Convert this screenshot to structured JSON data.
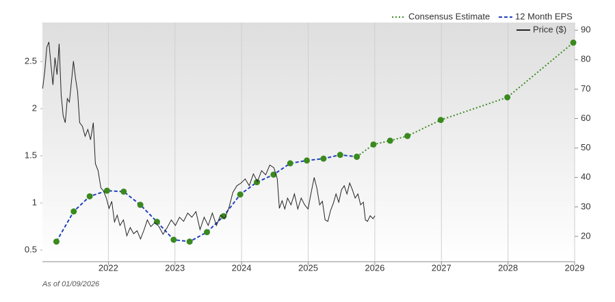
{
  "chart_data": {
    "type": "line",
    "note": "As of 01/09/2026",
    "xlim": [
      2021.01,
      2029.0
    ],
    "xticks": [
      2022,
      2023,
      2024,
      2025,
      2026,
      2027,
      2028,
      2029
    ],
    "ylim": [
      0.377,
      2.913
    ],
    "yticks": [
      0.5,
      1,
      1.5,
      2,
      2.5
    ],
    "y2lim": [
      11.4,
      92.6
    ],
    "y2ticks": [
      20,
      30,
      40,
      50,
      60,
      70,
      80,
      90
    ],
    "grid": true,
    "legend": "top-right",
    "series": [
      {
        "name": "Consensus Estimate",
        "color": "#3a8a1e",
        "style": "dotted",
        "markers": true,
        "marker_color": "#3a8a1e",
        "x": [
          2025.73,
          2025.98,
          2026.23,
          2026.49,
          2026.99,
          2027.99,
          2028.98
        ],
        "values": [
          1.49,
          1.62,
          1.66,
          1.71,
          1.88,
          2.12,
          2.7
        ]
      },
      {
        "name": "12 Month EPS",
        "color": "#1f3fbf",
        "style": "dashed",
        "markers": true,
        "marker_color": "#3a8a1e",
        "x": [
          2021.22,
          2021.48,
          2021.72,
          2021.98,
          2022.23,
          2022.48,
          2022.73,
          2022.98,
          2023.22,
          2023.48,
          2023.73,
          2023.98,
          2024.23,
          2024.48,
          2024.73,
          2024.98,
          2025.23,
          2025.48,
          2025.73
        ],
        "values": [
          0.59,
          0.91,
          1.07,
          1.13,
          1.12,
          0.98,
          0.8,
          0.61,
          0.59,
          0.69,
          0.86,
          1.09,
          1.22,
          1.3,
          1.42,
          1.45,
          1.47,
          1.51,
          1.49
        ]
      },
      {
        "name": "Price ($)",
        "color": "#222222",
        "style": "solid",
        "markers": false,
        "axis": "y2",
        "x": [
          2021.014,
          2021.045,
          2021.076,
          2021.107,
          2021.138,
          2021.168,
          2021.199,
          2021.23,
          2021.261,
          2021.292,
          2021.322,
          2021.353,
          2021.384,
          2021.415,
          2021.446,
          2021.476,
          2021.507,
          2021.538,
          2021.569,
          2021.61,
          2021.651,
          2021.692,
          2021.733,
          2021.774,
          2021.805,
          2021.846,
          2021.887,
          2021.928,
          2021.969,
          2022.01,
          2022.051,
          2022.092,
          2022.133,
          2022.174,
          2022.226,
          2022.277,
          2022.328,
          2022.38,
          2022.431,
          2022.483,
          2022.534,
          2022.585,
          2022.637,
          2022.698,
          2022.76,
          2022.821,
          2022.883,
          2022.945,
          2023.006,
          2023.068,
          2023.13,
          2023.191,
          2023.253,
          2023.315,
          2023.376,
          2023.438,
          2023.499,
          2023.561,
          2023.623,
          2023.684,
          2023.746,
          2023.807,
          2023.869,
          2023.93,
          2023.992,
          2024.054,
          2024.115,
          2024.177,
          2024.238,
          2024.3,
          2024.362,
          2024.423,
          2024.485,
          2024.536,
          2024.567,
          2024.608,
          2024.649,
          2024.69,
          2024.742,
          2024.793,
          2024.844,
          2024.895,
          2024.947,
          2024.998,
          2025.049,
          2025.09,
          2025.131,
          2025.172,
          2025.213,
          2025.254,
          2025.295,
          2025.336,
          2025.377,
          2025.418,
          2025.459,
          2025.5,
          2025.541,
          2025.582,
          2025.623,
          2025.664,
          2025.705,
          2025.746,
          2025.787,
          2025.828,
          2025.859,
          2025.89,
          2025.931,
          2025.972,
          2026.003
        ],
        "values": [
          70.2,
          76.0,
          84.2,
          86.0,
          78.4,
          71.4,
          80.7,
          74.9,
          85.4,
          67.9,
          60.9,
          58.6,
          66.8,
          65.6,
          72.6,
          79.5,
          73.7,
          69.1,
          58.6,
          57.4,
          54.0,
          56.3,
          52.8,
          58.6,
          44.7,
          42.3,
          36.5,
          35.4,
          33.0,
          29.5,
          31.9,
          24.9,
          27.2,
          23.7,
          25.6,
          20.2,
          23.0,
          20.9,
          21.9,
          19.1,
          22.1,
          25.6,
          23.3,
          24.7,
          23.3,
          20.7,
          23.0,
          25.6,
          23.7,
          26.5,
          25.1,
          27.9,
          26.5,
          28.4,
          22.3,
          26.5,
          23.7,
          27.9,
          23.7,
          27.2,
          26.0,
          29.5,
          34.9,
          37.2,
          38.1,
          39.5,
          37.2,
          41.2,
          38.6,
          42.3,
          40.9,
          44.2,
          43.3,
          39.5,
          29.5,
          32.1,
          29.3,
          33.0,
          30.7,
          34.4,
          29.3,
          33.0,
          30.7,
          29.3,
          35.4,
          40.0,
          36.3,
          30.7,
          31.9,
          25.6,
          25.1,
          28.8,
          31.2,
          34.4,
          31.6,
          35.8,
          37.2,
          34.4,
          38.1,
          35.8,
          33.0,
          34.4,
          30.7,
          31.6,
          25.6,
          25.1,
          27.0,
          26.0,
          27.0
        ]
      }
    ]
  }
}
